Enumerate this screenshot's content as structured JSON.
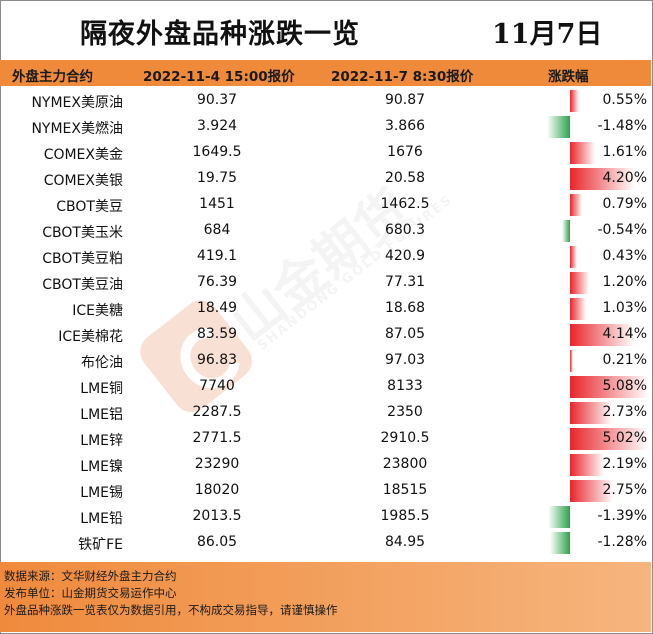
{
  "title": "隔夜外盘品种涨跌一览",
  "date": "11月7日",
  "header": {
    "col0": "外盘主力合约",
    "col1": "2022-11-4 15:00报价",
    "col2": "2022-11-7 8:30报价",
    "col3": "涨跌幅"
  },
  "watermark": {
    "main": "山金期货",
    "sub": "SHANDONG GOLD FUTURES",
    "logo": "SD-GOLD"
  },
  "colors": {
    "up": "#e8252b",
    "down": "#2ca24a",
    "header": "#ee8a3a"
  },
  "rows": [
    {
      "name": "NYMEX美原油",
      "prev": "90.37",
      "curr": "90.87",
      "pct_label": "0.55%",
      "pct": 0.55
    },
    {
      "name": "NYMEX美燃油",
      "prev": "3.924",
      "curr": "3.866",
      "pct_label": "-1.48%",
      "pct": -1.48
    },
    {
      "name": "COMEX美金",
      "prev": "1649.5",
      "curr": "1676",
      "pct_label": "1.61%",
      "pct": 1.61
    },
    {
      "name": "COMEX美银",
      "prev": "19.75",
      "curr": "20.58",
      "pct_label": "4.20%",
      "pct": 4.2
    },
    {
      "name": "CBOT美豆",
      "prev": "1451",
      "curr": "1462.5",
      "pct_label": "0.79%",
      "pct": 0.79
    },
    {
      "name": "CBOT美玉米",
      "prev": "684",
      "curr": "680.3",
      "pct_label": "-0.54%",
      "pct": -0.54
    },
    {
      "name": "CBOT美豆粕",
      "prev": "419.1",
      "curr": "420.9",
      "pct_label": "0.43%",
      "pct": 0.43
    },
    {
      "name": "CBOT美豆油",
      "prev": "76.39",
      "curr": "77.31",
      "pct_label": "1.20%",
      "pct": 1.2
    },
    {
      "name": "ICE美糖",
      "prev": "18.49",
      "curr": "18.68",
      "pct_label": "1.03%",
      "pct": 1.03
    },
    {
      "name": "ICE美棉花",
      "prev": "83.59",
      "curr": "87.05",
      "pct_label": "4.14%",
      "pct": 4.14
    },
    {
      "name": "布伦油",
      "prev": "96.83",
      "curr": "97.03",
      "pct_label": "0.21%",
      "pct": 0.21
    },
    {
      "name": "LME铜",
      "prev": "7740",
      "curr": "8133",
      "pct_label": "5.08%",
      "pct": 5.08
    },
    {
      "name": "LME铝",
      "prev": "2287.5",
      "curr": "2350",
      "pct_label": "2.73%",
      "pct": 2.73
    },
    {
      "name": "LME锌",
      "prev": "2771.5",
      "curr": "2910.5",
      "pct_label": "5.02%",
      "pct": 5.02
    },
    {
      "name": "LME镍",
      "prev": "23290",
      "curr": "23800",
      "pct_label": "2.19%",
      "pct": 2.19
    },
    {
      "name": "LME锡",
      "prev": "18020",
      "curr": "18515",
      "pct_label": "2.75%",
      "pct": 2.75
    },
    {
      "name": "LME铅",
      "prev": "2013.5",
      "curr": "1985.5",
      "pct_label": "-1.39%",
      "pct": -1.39
    },
    {
      "name": "铁矿FE",
      "prev": "86.05",
      "curr": "84.95",
      "pct_label": "-1.28%",
      "pct": -1.28
    }
  ],
  "footer": {
    "line1": "数据来源：文华财经外盘主力合约",
    "line2": "发布单位：山金期货交易运作中心",
    "line3": "外盘品种涨跌一览表仅为数据引用，不构成交易指导，请谨慎操作"
  }
}
